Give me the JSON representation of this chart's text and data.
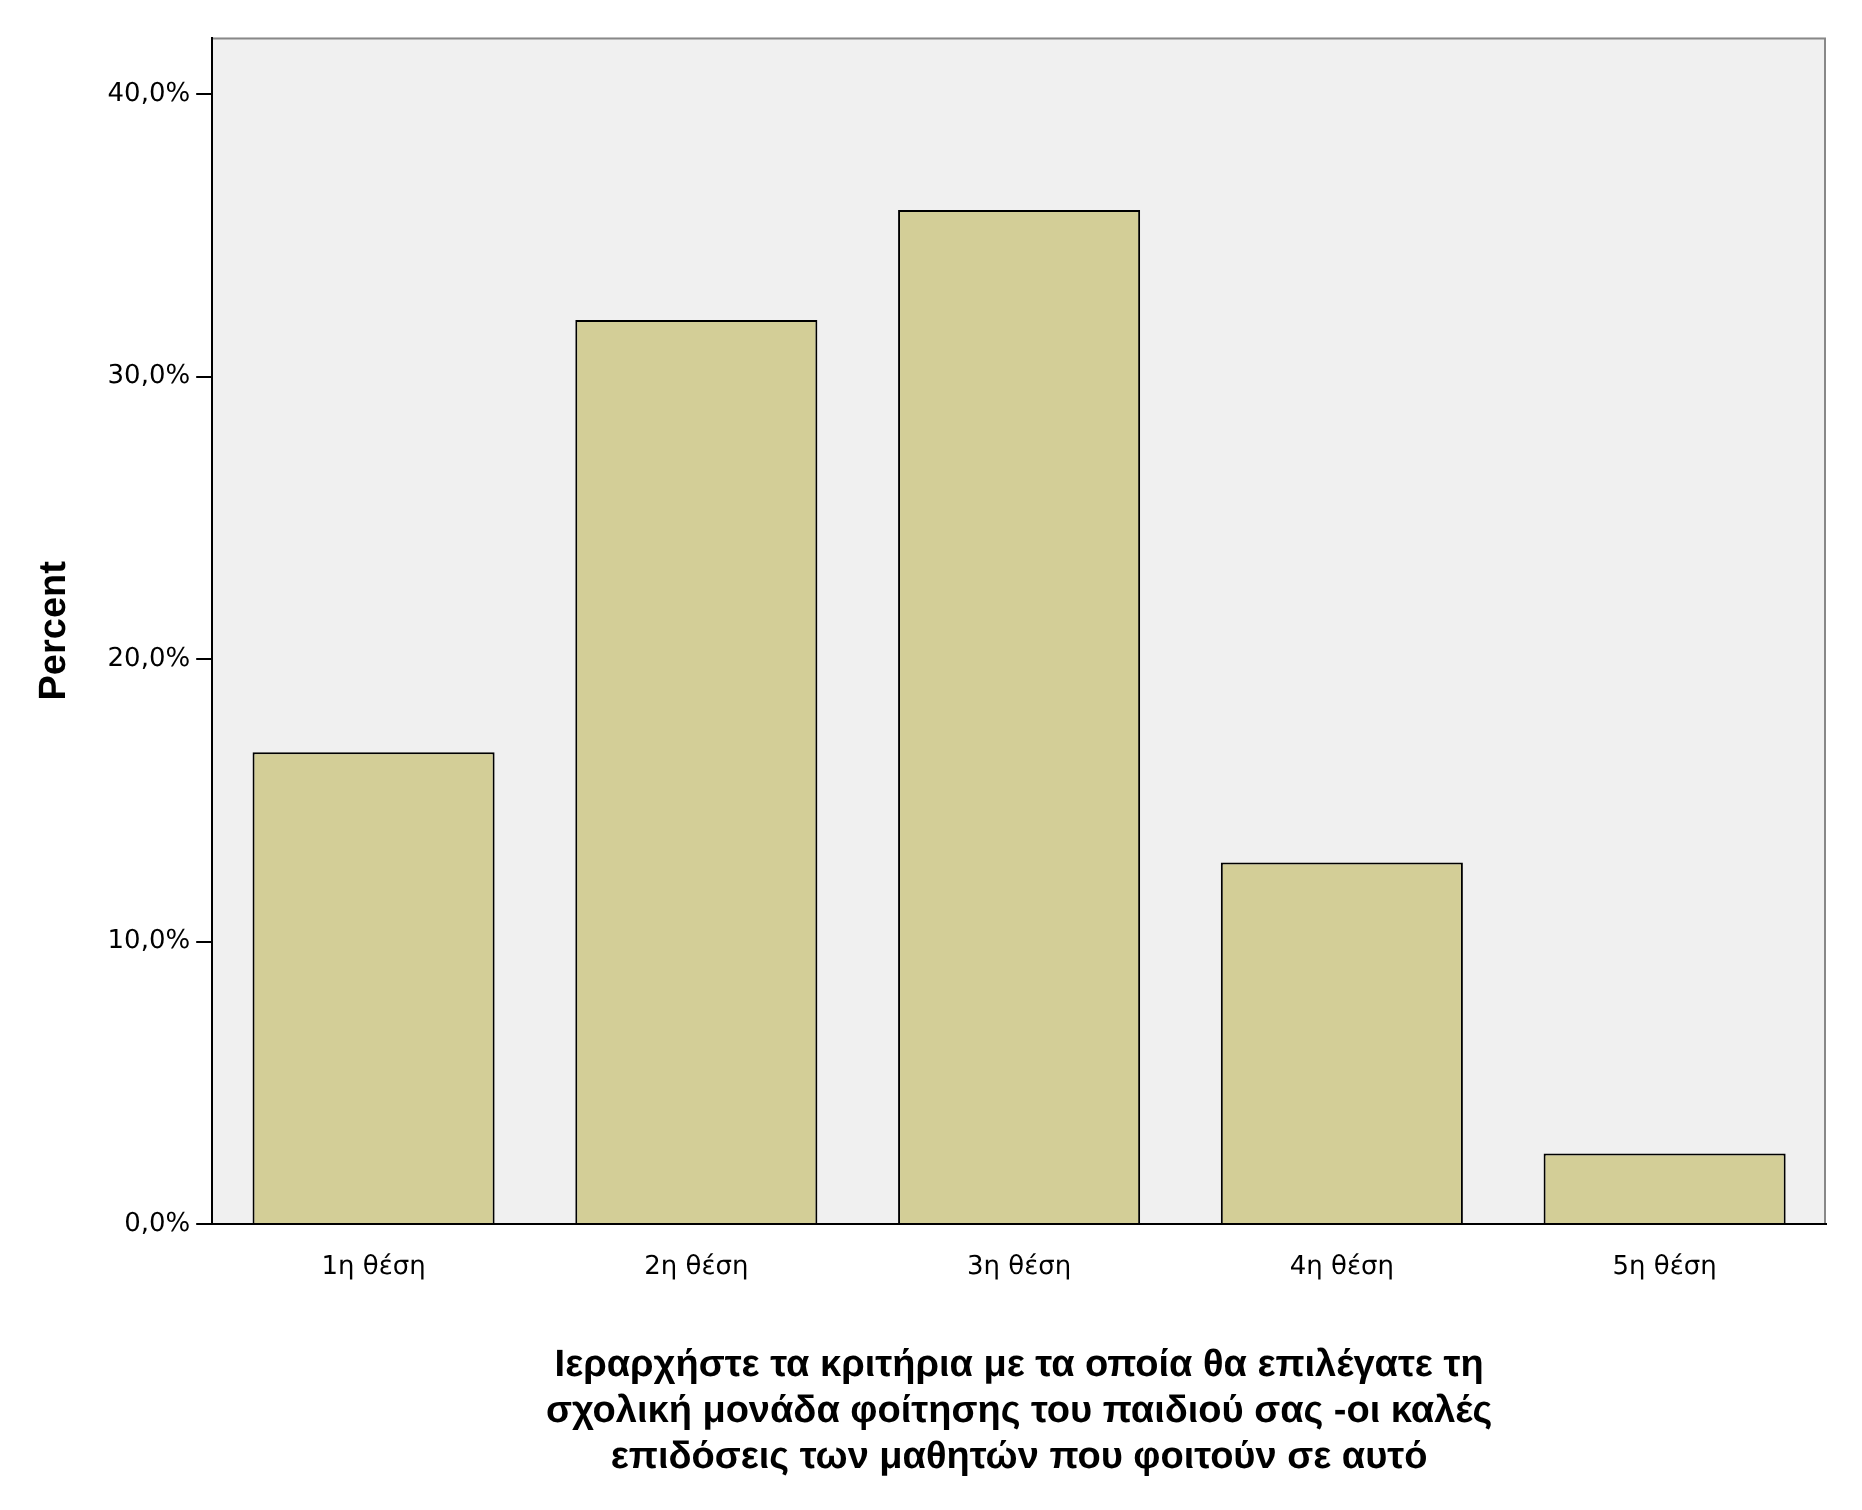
{
  "chart_data": {
    "type": "bar",
    "xlabel": "Ιεραρχήστε τα κριτήρια με τα οποία θα επιλέγατε τη\nσχολική μονάδα φοίτησης του παιδιού σας -οι καλές\nεπιδόσεις των μαθητών που φοιτούν σε αυτό",
    "ylabel": "Percent",
    "categories": [
      "1η θέση",
      "2η θέση",
      "3η θέση",
      "4η θέση",
      "5η θέση"
    ],
    "values": [
      16.7,
      32.0,
      35.9,
      12.8,
      2.5
    ],
    "color": "#d3ce97",
    "ylim": [
      0,
      42
    ],
    "yticks": [
      {
        "value": 0,
        "label": "0,0%"
      },
      {
        "value": 10,
        "label": "10,0%"
      },
      {
        "value": 20,
        "label": "20,0%"
      },
      {
        "value": 30,
        "label": "30,0%"
      },
      {
        "value": 40,
        "label": "40,0%"
      }
    ],
    "grid": false,
    "legend": false
  }
}
